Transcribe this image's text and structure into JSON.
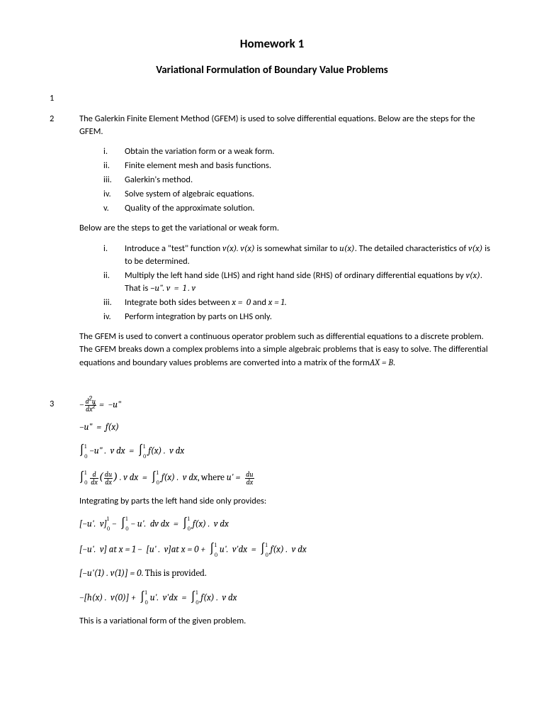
{
  "title": "Homework 1",
  "subtitle": "Variational Formulation of Boundary Value Problems",
  "sec1_num": "1",
  "sec2_num": "2",
  "sec3_num": "3",
  "p2_intro": "The Galerkin Finite Element Method (GFEM) is used to solve differential equations. Below are the steps for the GFEM.",
  "list_a": {
    "i": "Obtain the variation form or a weak form.",
    "ii": "Finite element mesh and basis functions.",
    "iii": "Galerkin's method.",
    "iv": "Solve system of algebraic equations.",
    "v": "Quality of the approximate solution."
  },
  "p2_mid": "Below are the steps to get the variational or weak form.",
  "list_b": {
    "i_pre": "Introduce a \"test\" function ",
    "i_mid": " is somewhat similar to ",
    "i_post": ". The detailed characteristics of ",
    "i_end": " is to be determined.",
    "ii_pre": "Multiply the left hand side (LHS) and right hand side (RHS) of ordinary differential equations by ",
    "ii_post": ". That is ",
    "iii_pre": "Integrate both sides between ",
    "iii_mid": " and ",
    "iv": "Perform integration by parts on LHS only."
  },
  "p2_out": "The GFEM is used to convert a continuous operator problem such as differential equations to a discrete problem. The GFEM breaks down a complex problems into a simple algebraic problems that is easy to solve.  The differential equations and boundary values problems are converted into a matrix of the form",
  "p3_integrating": "Integrating by parts the left hand side only provides:",
  "p3_provided": ". This is provided.",
  "p3_final": "This is a variational form of the given problem.",
  "labels": {
    "i": "i.",
    "ii": "ii.",
    "iii": "iii.",
    "iv": "iv.",
    "v": "v."
  },
  "math": {
    "vx": "v(x). v(x)",
    "ux": "u(x)",
    "vx2": "v(x)",
    "vx3": "v(x)",
    "neg_u_v": "−u\". v&nbsp;&nbsp;=&nbsp;&nbsp;1 . v",
    "x0": "x =&nbsp;&nbsp;0",
    "x1": "x = 1",
    "axb": "AX = B",
    "eq1_l": "−",
    "eq1_r": "=&nbsp;&nbsp;−u\"",
    "eq2": "−u\"&nbsp;&nbsp;=&nbsp;&nbsp;f(x)",
    "eq3_l": "−u\" .&nbsp;&nbsp;v dx&nbsp;&nbsp;=&nbsp;&nbsp;",
    "eq3_r": "f(x) .&nbsp;&nbsp;v dx",
    "eq4_l": "&nbsp;. v dx&nbsp;&nbsp;=&nbsp;&nbsp;",
    "eq4_r": "f(x) .&nbsp;&nbsp;v dx",
    "where": ", where ",
    "u_prime": "u' =&nbsp;&nbsp;",
    "eq5_l": "[−u'.&nbsp;&nbsp;v]",
    "eq5_m": "&nbsp;−&nbsp;&nbsp;",
    "eq5_m2": "− u'.&nbsp;&nbsp;dv dx&nbsp;&nbsp;=&nbsp;&nbsp;",
    "eq5_r": "f(x) .&nbsp;&nbsp;v dx",
    "eq6_a": "[−u'.&nbsp;&nbsp;v] at x = 1 −&nbsp;&nbsp;[u' .&nbsp;&nbsp;v]at x = 0 +&nbsp;&nbsp;",
    "eq6_b": "u'.&nbsp;&nbsp;v'dx&nbsp;&nbsp;=&nbsp;&nbsp;",
    "eq6_c": "f(x) .&nbsp;&nbsp;v dx",
    "eq7": "[−u'(1) . v(1)] = 0",
    "eq8_a": "−[h(x) .&nbsp;&nbsp;v(0)] +&nbsp;&nbsp;",
    "eq8_b": "u'.&nbsp;&nbsp;v'dx&nbsp;&nbsp;=&nbsp;&nbsp;",
    "eq8_c": "f(x) .&nbsp;&nbsp;v dx",
    "d2u": "d<sup>2</sup>u",
    "dx2": "dx<sup>2</sup>",
    "du": "du",
    "dx": "dx",
    "d": "d"
  }
}
